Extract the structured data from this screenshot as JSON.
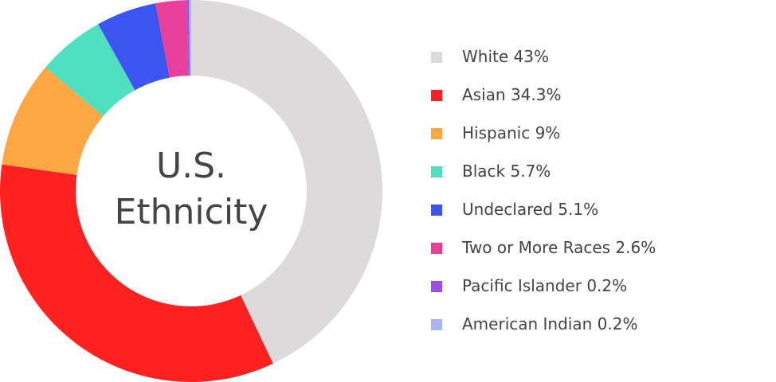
{
  "chart_data": {
    "type": "donut",
    "title": "U.S. Ethnicity",
    "categories": [
      "White",
      "Asian",
      "Hispanic",
      "Black",
      "Undeclared",
      "Two or More Races",
      "Pacific Islander",
      "American Indian"
    ],
    "values": [
      43,
      34.3,
      9,
      5.7,
      5.1,
      2.6,
      0.2,
      0.2
    ],
    "value_labels": [
      "43%",
      "34.3%",
      "9%",
      "5.7%",
      "5.1%",
      "2.6%",
      "0.2%",
      "0.2%"
    ],
    "colors": [
      "#dcdadb",
      "#ff2020",
      "#fca644",
      "#4fe0c0",
      "#3a55f0",
      "#e8409a",
      "#9b4fe8",
      "#a8b4f8"
    ]
  }
}
